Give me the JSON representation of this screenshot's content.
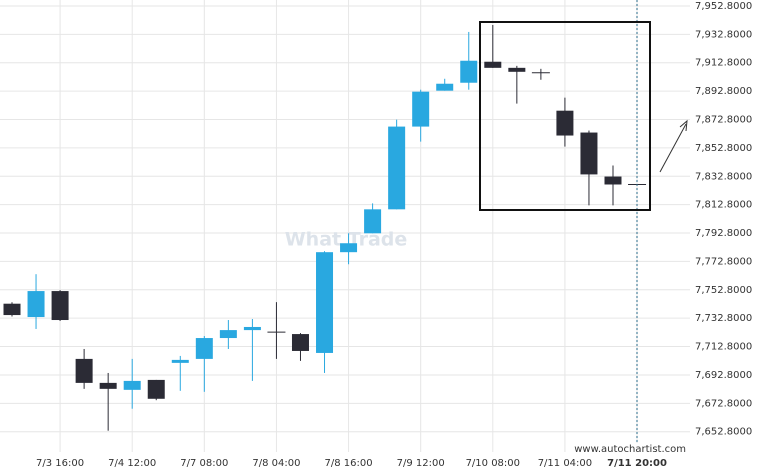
{
  "chart_data": {
    "type": "candlestick",
    "categories": [
      null,
      null,
      "7/3 16:00",
      null,
      null,
      "7/4 12:00",
      null,
      null,
      "7/7 08:00",
      null,
      null,
      "7/8 04:00",
      null,
      null,
      "7/8 16:00",
      null,
      null,
      "7/9 12:00",
      null,
      null,
      "7/10 08:00",
      null,
      null,
      "7/11 04:00",
      null,
      null,
      "7/11 20:00"
    ],
    "open": [
      7743,
      7733.6,
      7751.9,
      7704.1,
      7687.2,
      7682.3,
      7689.3,
      7701.3,
      7704.1,
      7718.8,
      7724.4,
      7723.0,
      7721.6,
      7708.3,
      7779.3,
      7792.6,
      7809.5,
      7867.8,
      7893.1,
      7898.7,
      7913.5,
      7909.2,
      7905.7,
      7879.0,
      7863.6,
      7832.6,
      7827.0
    ],
    "high": [
      7744,
      7763.8,
      7752.6,
      7711.1,
      7694.2,
      7704.1,
      7689.3,
      7706.2,
      7720.2,
      7731.5,
      7732.2,
      7744.1,
      7722.3,
      7780.0,
      7792.6,
      7813.7,
      7872.7,
      7893.8,
      7901.5,
      7934.5,
      7939.4,
      7910.6,
      7908.5,
      7888.2,
      7865.0,
      7840.4,
      7827.0
    ],
    "low": [
      7734,
      7725.2,
      7730.8,
      7683.0,
      7653.5,
      7669.0,
      7675.0,
      7681.6,
      7680.9,
      7711.1,
      7688.6,
      7704.1,
      7702.7,
      7694.2,
      7770.8,
      7792.6,
      7809.5,
      7857.2,
      7893.1,
      7893.8,
      7909.2,
      7884.0,
      7900.8,
      7853.7,
      7812.3,
      7812.3,
      7827.0
    ],
    "close": [
      7735,
      7751.9,
      7731.5,
      7687.2,
      7683.0,
      7688.6,
      7676.0,
      7703.4,
      7718.8,
      7724.4,
      7726.6,
      7723.0,
      7709.7,
      7779.3,
      7785.6,
      7809.5,
      7867.8,
      7892.4,
      7898.0,
      7914.2,
      7909.2,
      7906.4,
      7905.7,
      7861.5,
      7834.1,
      7827.0,
      7827.0
    ],
    "up_color": "#29a8e0",
    "down_color": "#2b2b35",
    "ylim": [
      7638.5,
      7957
    ],
    "yticks": [
      {
        "value": 7652.8,
        "label": "7,652.8000"
      },
      {
        "value": 7672.8,
        "label": "7,672.8000"
      },
      {
        "value": 7692.8,
        "label": "7,692.8000"
      },
      {
        "value": 7712.8,
        "label": "7,712.8000"
      },
      {
        "value": 7732.8,
        "label": "7,732.8000"
      },
      {
        "value": 7752.8,
        "label": "7,752.8000"
      },
      {
        "value": 7772.8,
        "label": "7,772.8000"
      },
      {
        "value": 7792.8,
        "label": "7,792.8000"
      },
      {
        "value": 7812.8,
        "label": "7,812.8000"
      },
      {
        "value": 7832.8,
        "label": "7,832.8000"
      },
      {
        "value": 7852.8,
        "label": "7,852.8000"
      },
      {
        "value": 7872.8,
        "label": "7,872.8000"
      },
      {
        "value": 7892.8,
        "label": "7,892.8000"
      },
      {
        "value": 7912.8,
        "label": "7,912.8000"
      },
      {
        "value": 7932.8,
        "label": "7,932.8000"
      },
      {
        "value": 7952.8,
        "label": "7,952.8000"
      }
    ],
    "grid": true,
    "watermark": "What Trade",
    "source": "www.autochartist.com"
  }
}
